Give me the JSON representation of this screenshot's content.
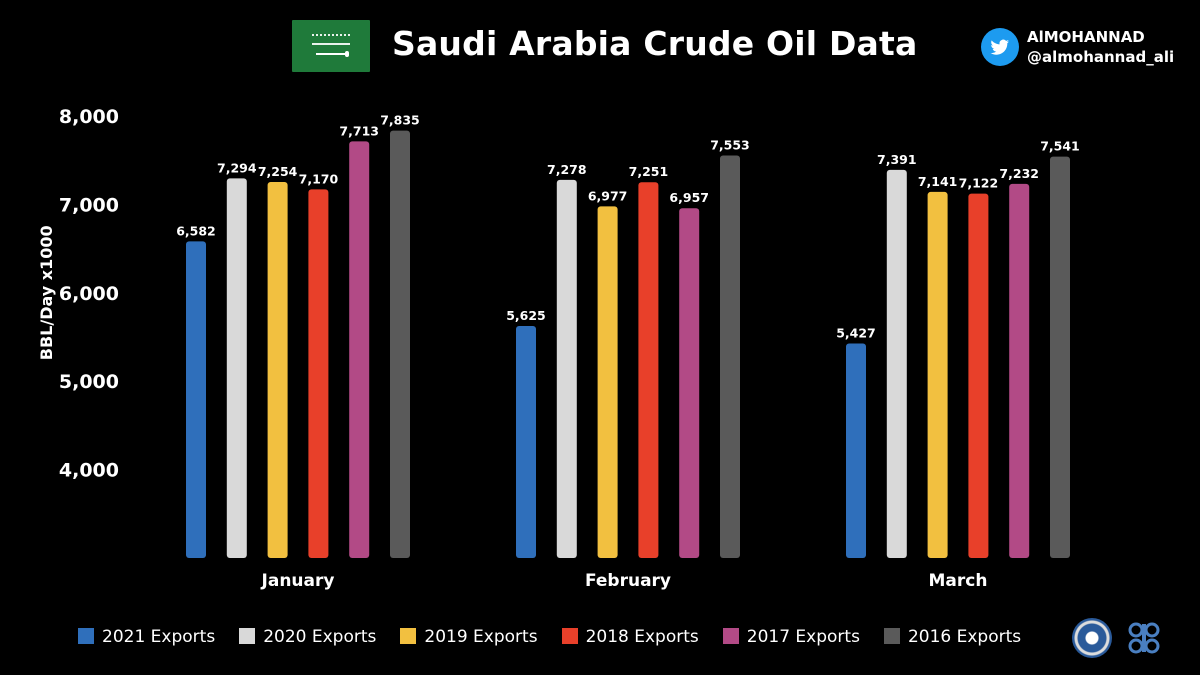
{
  "header": {
    "title": "Saudi Arabia Crude Oil Data",
    "author_name": "AlMOHANNAD",
    "author_handle": "@almohannad_ali"
  },
  "chart_data": {
    "type": "bar",
    "title": "Saudi Arabia Crude Oil Data",
    "ylabel": "BBL/Day x1000",
    "xlabel": "",
    "ylim": [
      3000,
      8000
    ],
    "yticks": [
      "4,000",
      "5,000",
      "6,000",
      "7,000",
      "8,000"
    ],
    "ytick_values": [
      4000,
      5000,
      6000,
      7000,
      8000
    ],
    "categories": [
      "January",
      "February",
      "March"
    ],
    "series": [
      {
        "name": "2021 Exports",
        "color": "#2f6fbb",
        "values": [
          6582,
          5625,
          5427
        ],
        "labels": [
          "6,582",
          "5,625",
          "5,427"
        ]
      },
      {
        "name": "2020 Exports",
        "color": "#d9d9d9",
        "values": [
          7294,
          7278,
          7391
        ],
        "labels": [
          "7,294",
          "7,278",
          "7,391"
        ]
      },
      {
        "name": "2019 Exports",
        "color": "#f2c040",
        "values": [
          7254,
          6977,
          7141
        ],
        "labels": [
          "7,254",
          "6,977",
          "7,141"
        ]
      },
      {
        "name": "2018 Exports",
        "color": "#e8402a",
        "values": [
          7170,
          7251,
          7122
        ],
        "labels": [
          "7,170",
          "7,251",
          "7,122"
        ]
      },
      {
        "name": "2017 Exports",
        "color": "#b24a86",
        "values": [
          7713,
          6957,
          7232
        ],
        "labels": [
          "7,713",
          "6,957",
          "7,232"
        ]
      },
      {
        "name": "2016 Exports",
        "color": "#5a5a5a",
        "values": [
          7835,
          7553,
          7541
        ],
        "labels": [
          "7,835",
          "7,553",
          "7,541"
        ]
      }
    ],
    "grid": false,
    "legend_position": "bottom"
  }
}
